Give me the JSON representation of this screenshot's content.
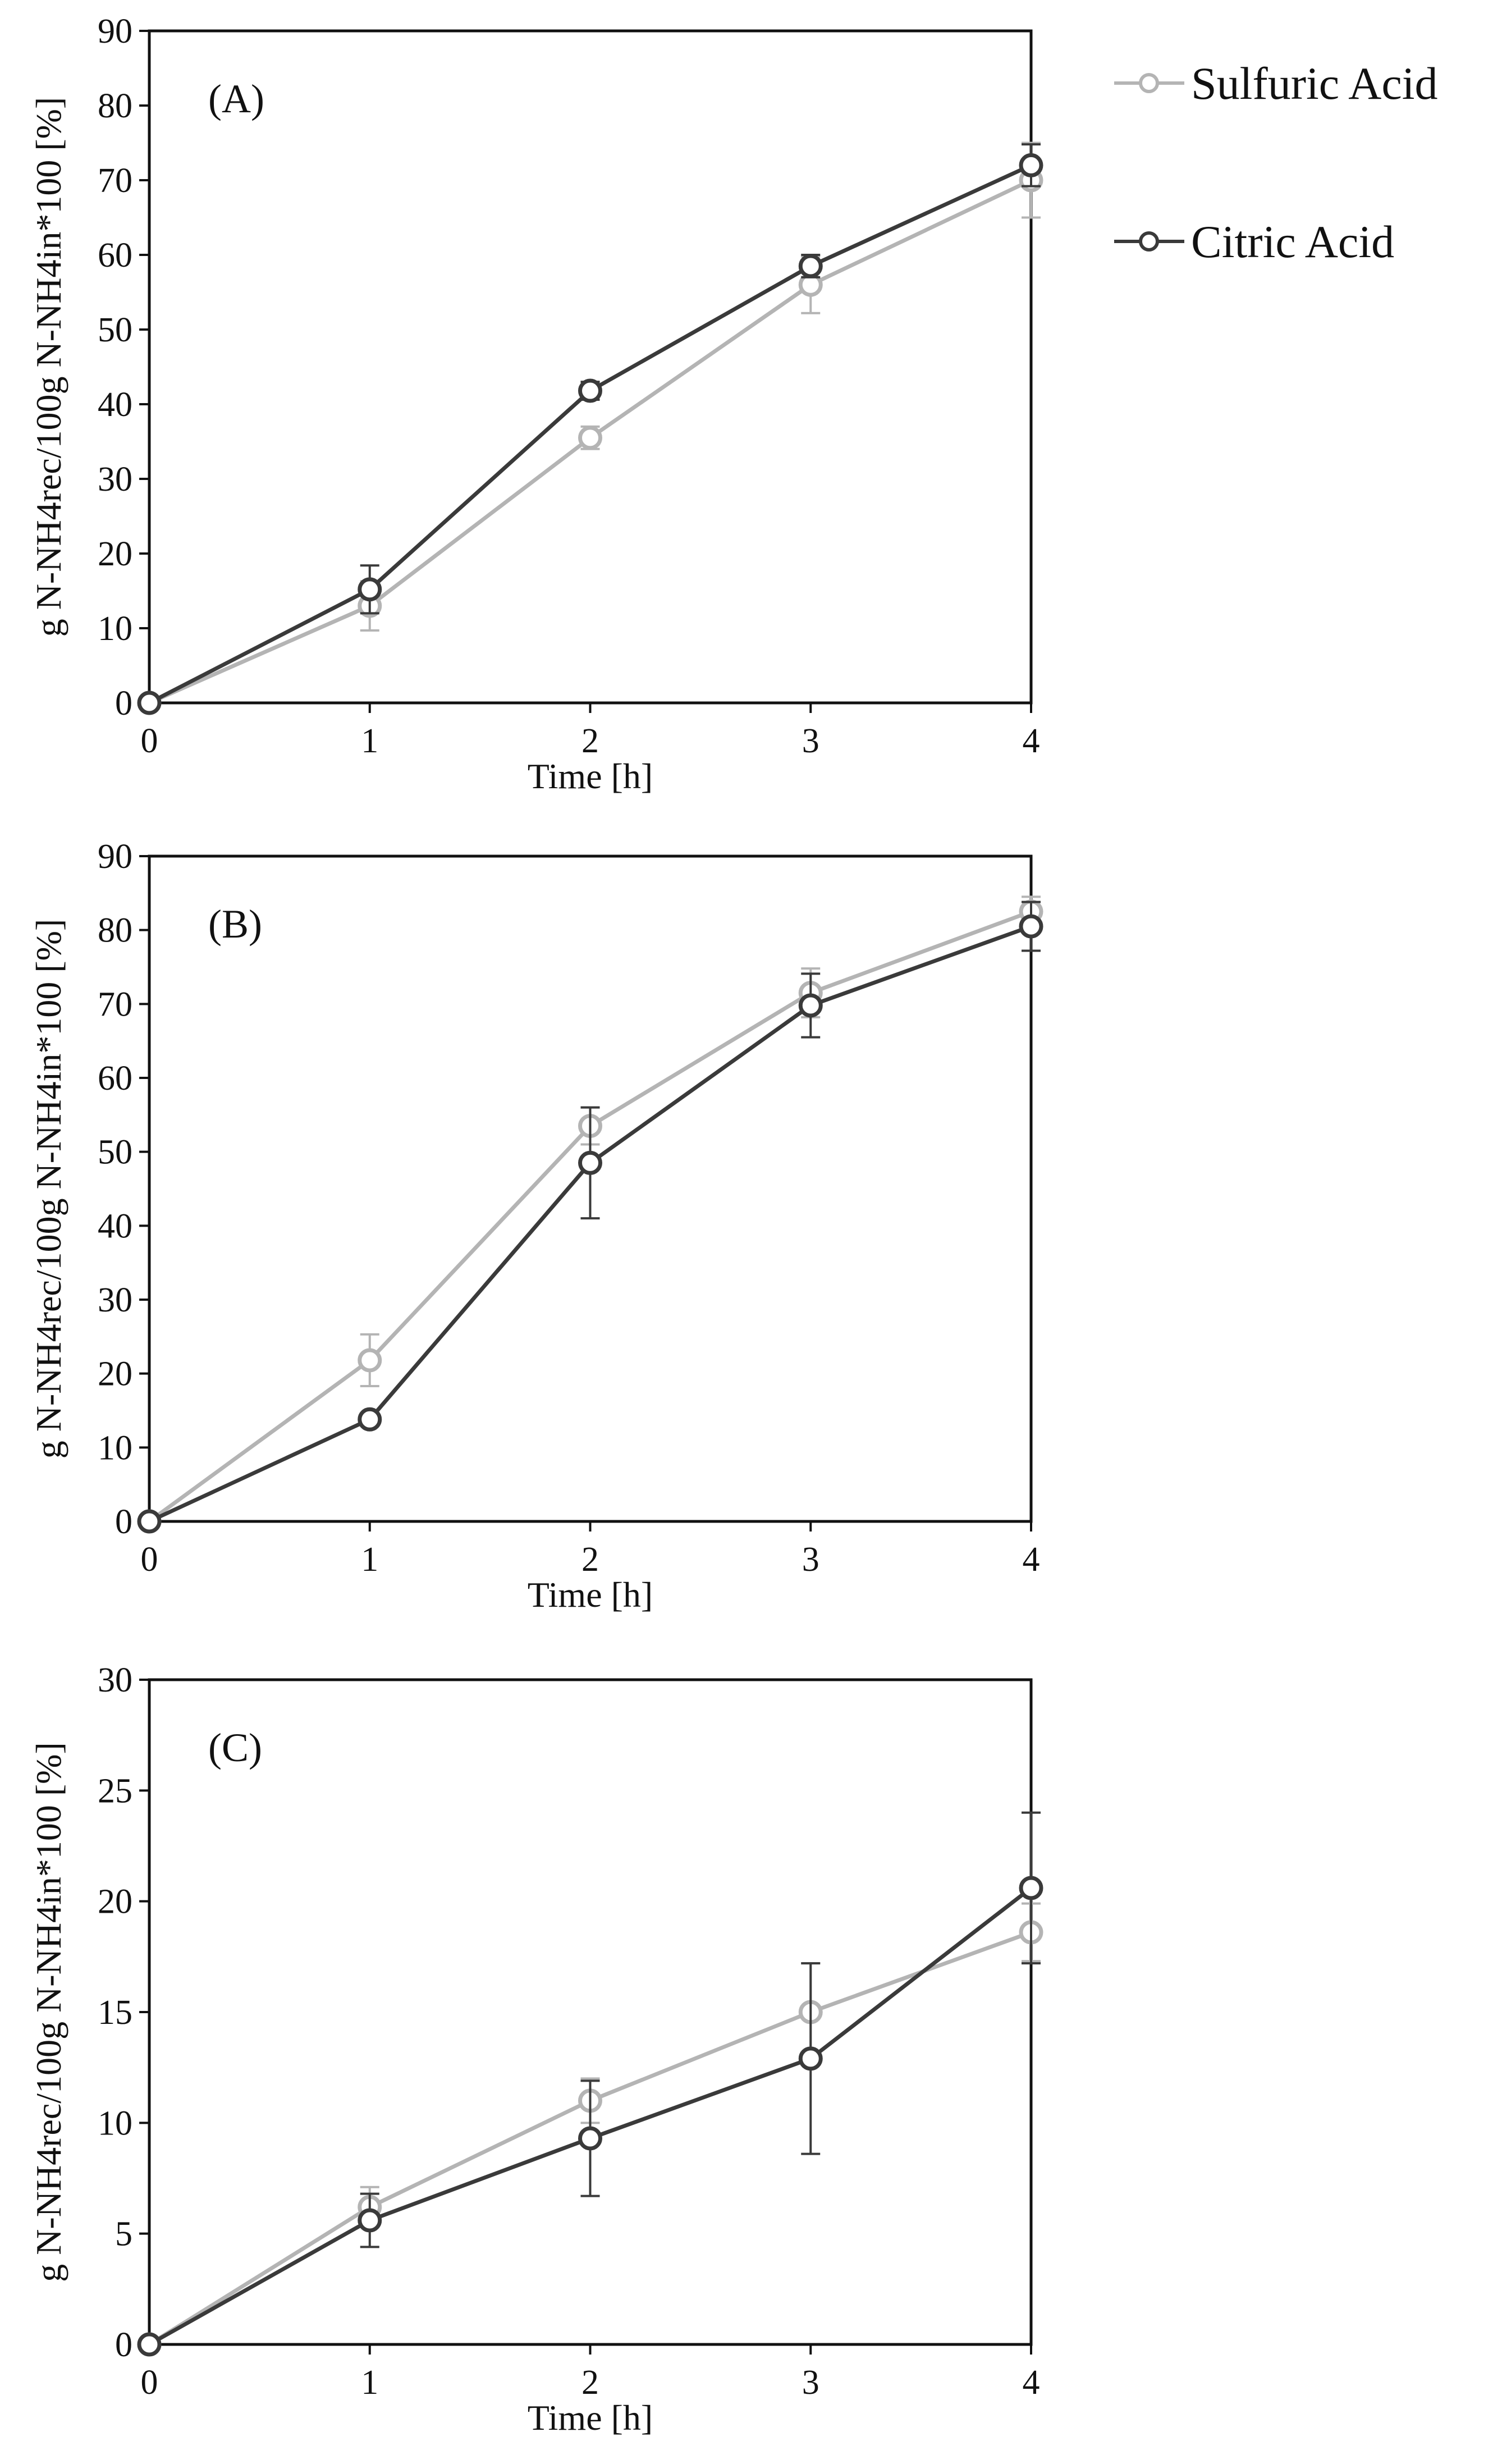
{
  "legend": [
    {
      "name": "Sulfuric Acid",
      "color": "#b4b4b4"
    },
    {
      "name": "Citric Acid",
      "color": "#3a3a3a"
    }
  ],
  "chart_data": [
    {
      "type": "line",
      "panel_label": "(A)",
      "xlabel": "Time [h]",
      "ylabel": "g N-NH4rec/100g N-NH4in*100 [%]",
      "x": [
        0,
        1,
        2,
        3,
        4
      ],
      "xticks": [
        "0",
        "1",
        "2",
        "3",
        "4"
      ],
      "ylim": [
        0,
        90
      ],
      "yticks": [
        "0",
        "10",
        "20",
        "30",
        "40",
        "50",
        "60",
        "70",
        "80",
        "90"
      ],
      "series": [
        {
          "name": "Sulfuric Acid",
          "values": [
            0,
            13,
            35.5,
            56,
            70
          ],
          "errors": [
            0,
            3.3,
            1.5,
            3.8,
            5
          ]
        },
        {
          "name": "Citric Acid",
          "values": [
            0,
            15.2,
            41.8,
            58.5,
            72
          ],
          "errors": [
            0,
            3.2,
            1.2,
            1.5,
            2.8
          ]
        }
      ]
    },
    {
      "type": "line",
      "panel_label": "(B)",
      "xlabel": "Time [h]",
      "ylabel": "g N-NH4rec/100g N-NH4in*100 [%]",
      "x": [
        0,
        1,
        2,
        3,
        4
      ],
      "xticks": [
        "0",
        "1",
        "2",
        "3",
        "4"
      ],
      "ylim": [
        0,
        90
      ],
      "yticks": [
        "0",
        "10",
        "20",
        "30",
        "40",
        "50",
        "60",
        "70",
        "80",
        "90"
      ],
      "series": [
        {
          "name": "Sulfuric Acid",
          "values": [
            0,
            21.8,
            53.5,
            71.5,
            82.5
          ],
          "errors": [
            0,
            3.5,
            2.5,
            3.3,
            2
          ]
        },
        {
          "name": "Citric Acid",
          "values": [
            0,
            13.8,
            48.5,
            69.8,
            80.5
          ],
          "errors": [
            0,
            0.5,
            7.5,
            4.3,
            3.3
          ]
        }
      ]
    },
    {
      "type": "line",
      "panel_label": "(C)",
      "xlabel": "Time [h]",
      "ylabel": "g N-NH4rec/100g N-NH4in*100 [%]",
      "x": [
        0,
        1,
        2,
        3,
        4
      ],
      "xticks": [
        "0",
        "1",
        "2",
        "3",
        "4"
      ],
      "ylim": [
        0,
        30
      ],
      "yticks": [
        "0",
        "5",
        "10",
        "15",
        "20",
        "25",
        "30"
      ],
      "series": [
        {
          "name": "Sulfuric Acid",
          "values": [
            0,
            6.2,
            11,
            15,
            18.6
          ],
          "errors": [
            0,
            0.9,
            1,
            2.2,
            1.3
          ]
        },
        {
          "name": "Citric Acid",
          "values": [
            0,
            5.6,
            9.3,
            12.9,
            20.6
          ],
          "errors": [
            0,
            1.2,
            2.6,
            4.3,
            3.4
          ]
        }
      ]
    }
  ]
}
